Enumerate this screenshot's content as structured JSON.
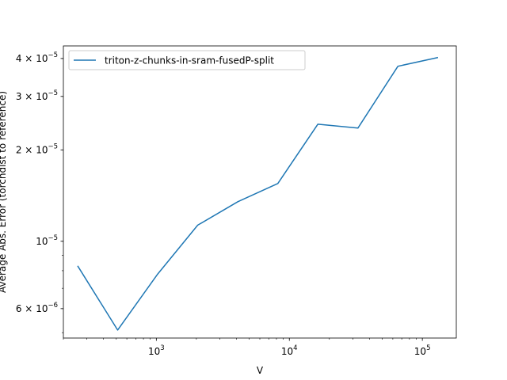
{
  "chart_data": {
    "type": "line",
    "xlabel": "V",
    "ylabel": "Average Abs. Error (torchdist to reference)",
    "xscale": "log",
    "yscale": "log",
    "xlim": [
      200,
      180000
    ],
    "ylim": [
      4.8e-06,
      4.4e-05
    ],
    "grid": false,
    "legend_position": "top-left",
    "x_ticks": [
      {
        "value": 1000,
        "base": "10",
        "exp": "3"
      },
      {
        "value": 10000,
        "base": "10",
        "exp": "4"
      },
      {
        "value": 100000,
        "base": "10",
        "exp": "5"
      }
    ],
    "y_ticks": [
      {
        "value": 6e-06,
        "mant": "6",
        "base": "10",
        "exp": "−6"
      },
      {
        "value": 1e-05,
        "mant": "",
        "base": "10",
        "exp": "−5"
      },
      {
        "value": 2e-05,
        "mant": "2",
        "base": "10",
        "exp": "−5"
      },
      {
        "value": 3e-05,
        "mant": "3",
        "base": "10",
        "exp": "−5"
      },
      {
        "value": 4e-05,
        "mant": "4",
        "base": "10",
        "exp": "−5"
      }
    ],
    "series": [
      {
        "name": "triton-z-chunks-in-sram-fusedP-split",
        "color": "#1f77b4",
        "x": [
          256,
          512,
          1024,
          2048,
          4096,
          8192,
          16384,
          32768,
          65536,
          131072
        ],
        "y": [
          8.3e-06,
          5.1e-06,
          7.8e-06,
          1.13e-05,
          1.35e-05,
          1.55e-05,
          2.43e-05,
          2.36e-05,
          3.77e-05,
          4.03e-05
        ]
      }
    ]
  }
}
